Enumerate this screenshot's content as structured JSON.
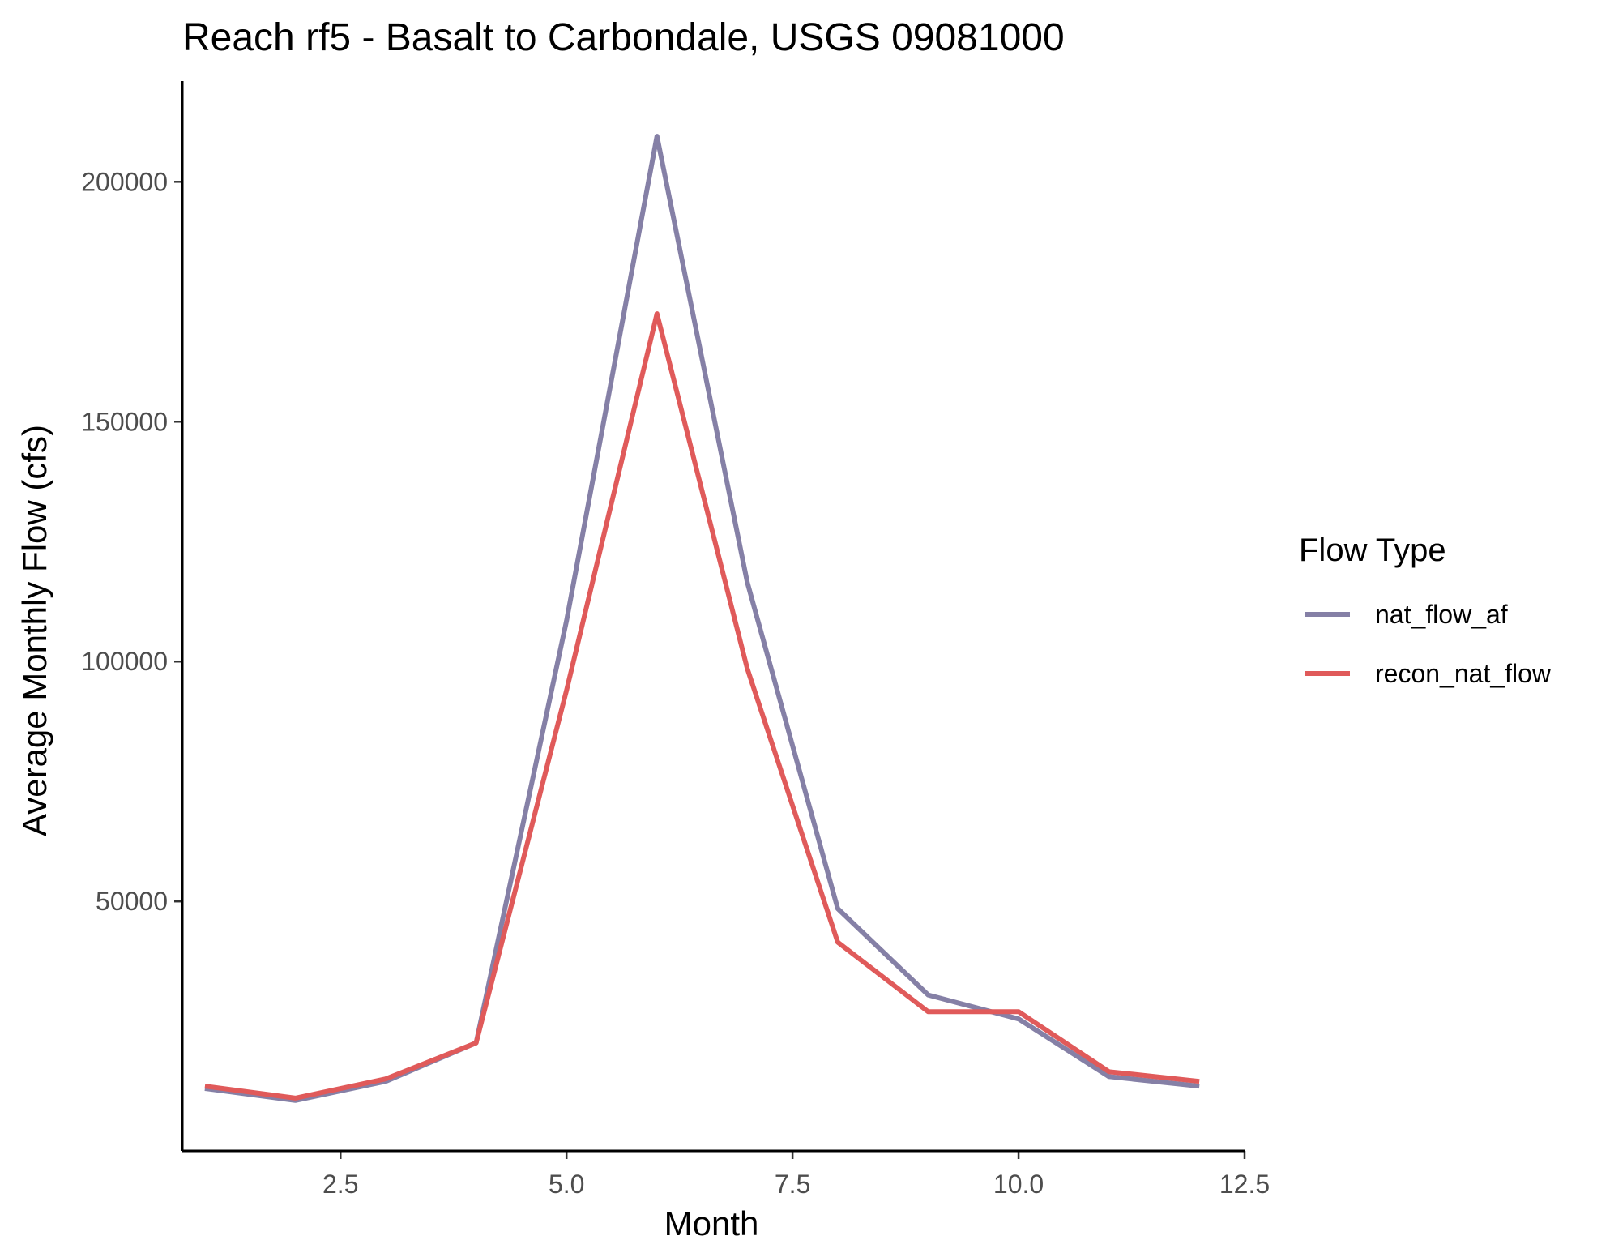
{
  "chart_data": {
    "type": "line",
    "title": "Reach rf5 - Basalt to Carbondale, USGS 09081000",
    "xlabel": "Month",
    "ylabel": "Average Monthly Flow (cfs)",
    "xlim": [
      0.75,
      12.5
    ],
    "ylim": [
      -2000,
      221000
    ],
    "x_ticks": [
      2.5,
      5.0,
      7.5,
      10.0,
      12.5
    ],
    "x_tick_labels": [
      "2.5",
      "5.0",
      "7.5",
      "10.0",
      "12.5"
    ],
    "y_ticks": [
      50000,
      100000,
      150000,
      200000
    ],
    "y_tick_labels": [
      "50000",
      "100000",
      "150000",
      "200000"
    ],
    "grid": false,
    "legend": {
      "title": "Flow Type",
      "placement": "right"
    },
    "x": [
      1,
      2,
      3,
      4,
      5,
      6,
      7,
      8,
      9,
      10,
      11,
      12
    ],
    "series": [
      {
        "name": "nat_flow_af",
        "color": "#8580a6",
        "values": [
          11000,
          8500,
          12500,
          20500,
          108500,
          209500,
          116500,
          48500,
          30500,
          25500,
          13500,
          11500
        ]
      },
      {
        "name": "recon_nat_flow",
        "color": "#e05a5a",
        "values": [
          11500,
          9000,
          13000,
          20500,
          94000,
          172500,
          98500,
          41500,
          27000,
          27000,
          14500,
          12500
        ]
      }
    ]
  }
}
